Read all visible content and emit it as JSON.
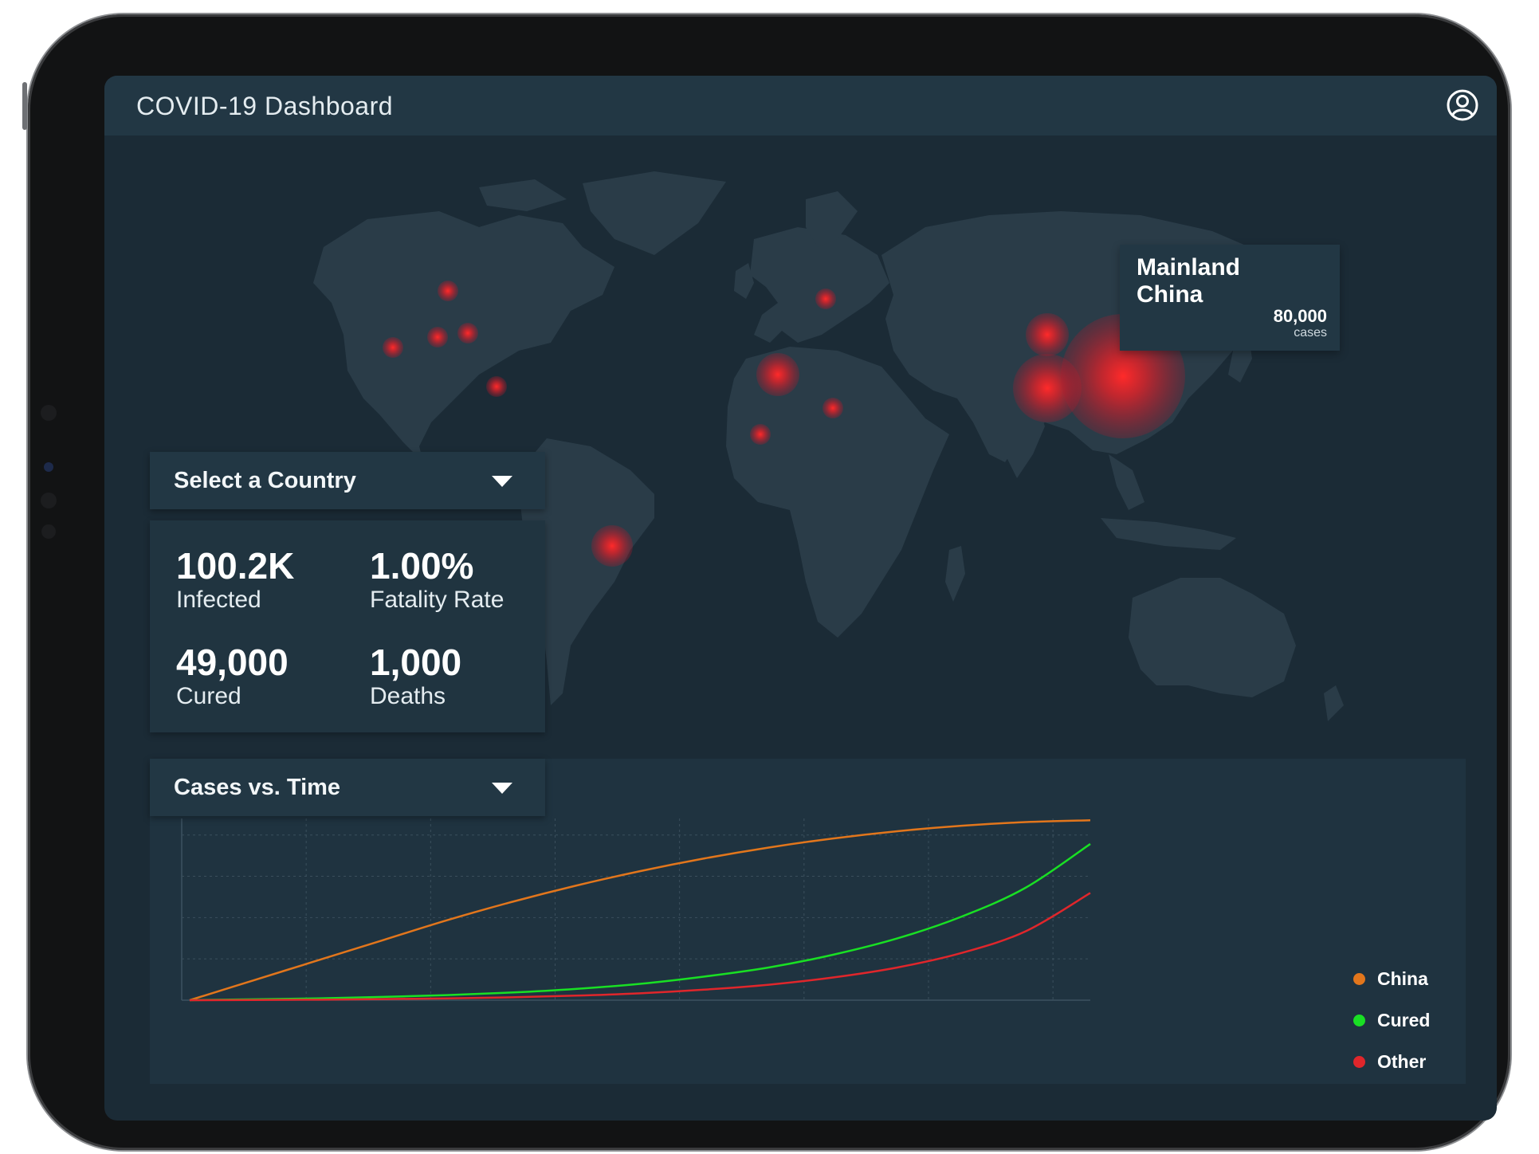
{
  "app": {
    "title": "COVID-19 Dashboard",
    "account_icon": "user-circle-icon"
  },
  "colors": {
    "background": "#1b2b36",
    "panel": "#223744",
    "land": "#2a3c48",
    "hotspot": "#e0262b",
    "china_series": "#e2761c",
    "cured_series": "#19e024",
    "other_series": "#e0262b"
  },
  "tooltip": {
    "title": "Mainland China",
    "value": "80,000",
    "unit": "cases"
  },
  "country_select": {
    "label": "Select a Country",
    "icon": "caret-down-icon"
  },
  "stats": {
    "infected": {
      "value": "100.2K",
      "label": "Infected"
    },
    "fatality": {
      "value": "1.00%",
      "label": "Fatality Rate"
    },
    "cured": {
      "value": "49,000",
      "label": "Cured"
    },
    "deaths": {
      "value": "1,000",
      "label": "Deaths"
    }
  },
  "chart_select": {
    "label": "Cases vs. Time",
    "icon": "caret-down-icon"
  },
  "chart_data": {
    "type": "line",
    "title": "",
    "xlabel": "",
    "ylabel": "",
    "x": [
      0,
      1,
      2,
      3,
      4,
      5,
      6,
      7,
      8,
      9,
      10,
      11,
      12,
      13,
      14
    ],
    "xlim": [
      0,
      14
    ],
    "ylim": [
      0,
      100
    ],
    "grid": true,
    "legend_position": "right",
    "series": [
      {
        "name": "China",
        "color": "#e2761c",
        "values": [
          0,
          11,
          22,
          33,
          44,
          54,
          63,
          71,
          78,
          84,
          89,
          93,
          96,
          98,
          99
        ]
      },
      {
        "name": "Cured",
        "color": "#19e024",
        "values": [
          0,
          0.5,
          1,
          1.8,
          2.8,
          4.2,
          6.2,
          9,
          13,
          18,
          25,
          34,
          46,
          62,
          86
        ]
      },
      {
        "name": "Other",
        "color": "#e0262b",
        "values": [
          0,
          0.1,
          0.3,
          0.6,
          1,
          1.6,
          2.5,
          3.8,
          5.8,
          8.5,
          12.5,
          18,
          26,
          38,
          59
        ]
      }
    ]
  }
}
